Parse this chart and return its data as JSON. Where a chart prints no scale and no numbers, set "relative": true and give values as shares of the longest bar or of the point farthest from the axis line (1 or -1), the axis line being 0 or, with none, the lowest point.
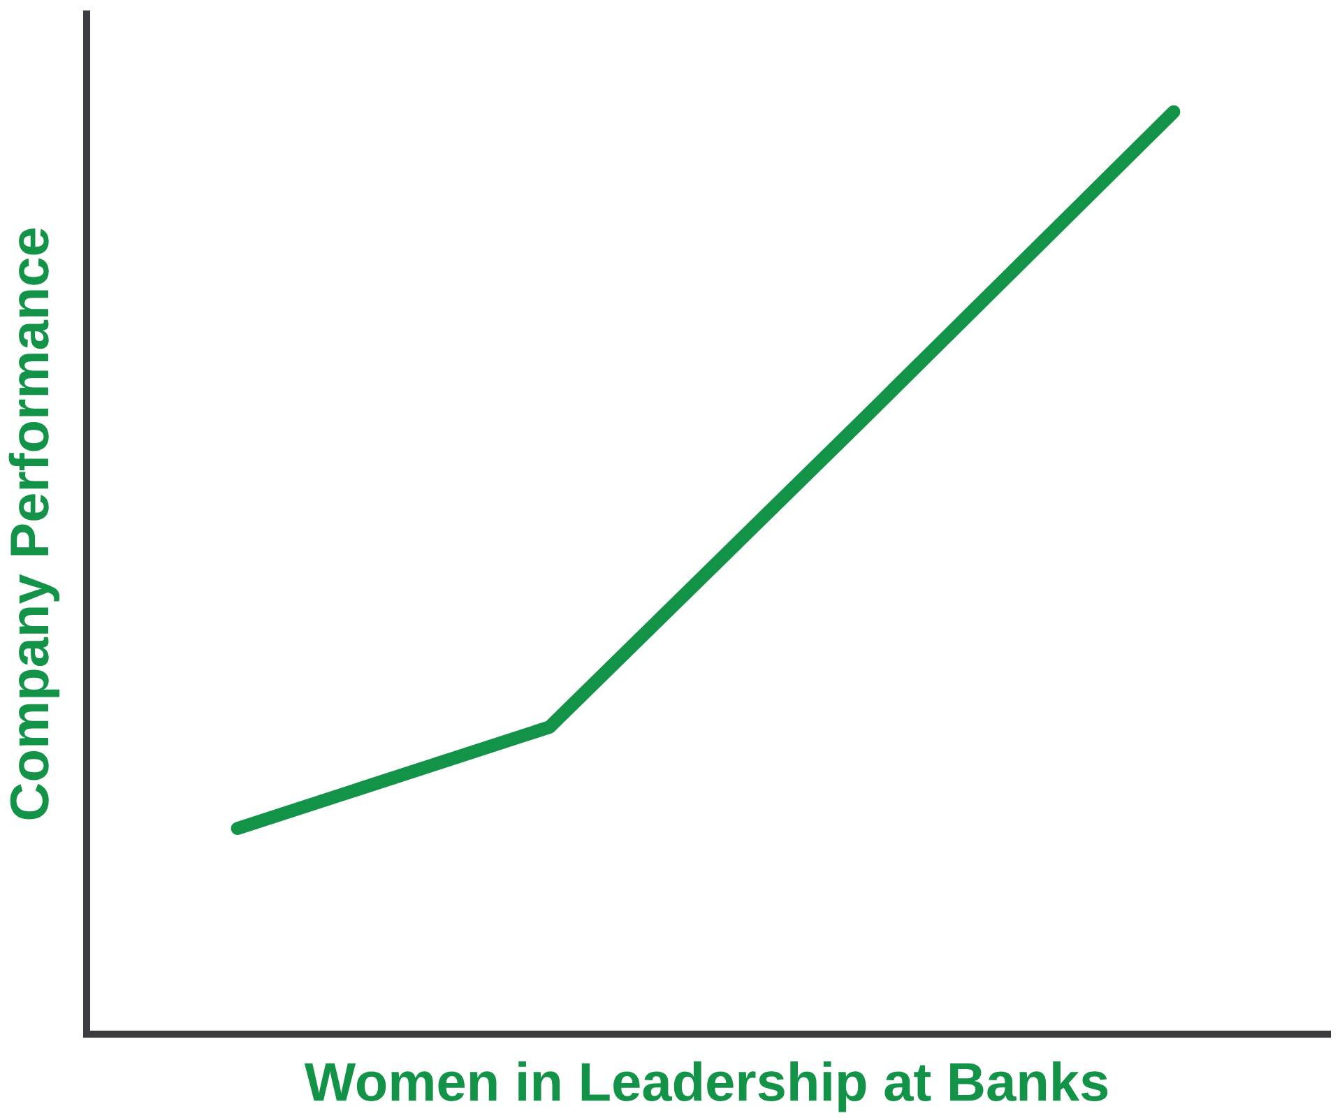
{
  "chart_data": {
    "type": "line",
    "xlabel": "Women in Leadership at Banks",
    "ylabel": "Company Performance",
    "relative": true,
    "tick_labels": false,
    "grid": false,
    "legend": false,
    "categories": [
      null,
      null,
      null,
      null
    ],
    "series": [
      {
        "color": "#129347",
        "values": [
          0.223,
          0.333,
          0.665,
          1.0
        ]
      }
    ]
  }
}
